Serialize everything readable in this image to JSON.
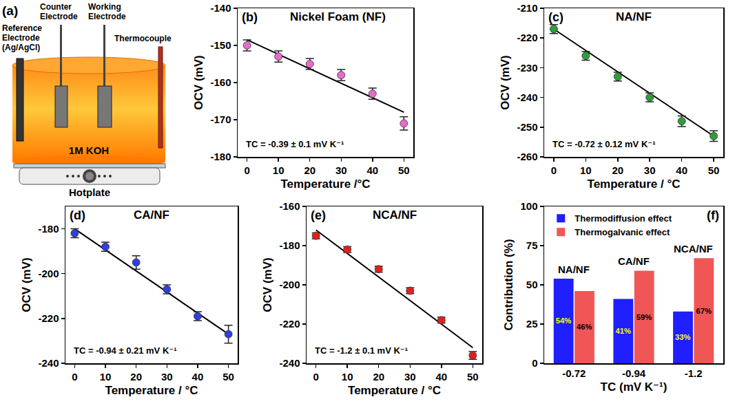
{
  "diagram": {
    "panel": "(a)",
    "reference": "Reference Electrode (Ag/AgCl)",
    "counter": "Counter Electrode",
    "working": "Working Electrode",
    "thermocouple": "Thermocouple",
    "solution": "1M KOH",
    "heater": "Hotplate"
  },
  "chart_data": [
    {
      "type": "scatter",
      "panel": "(b)",
      "title": "Nickel Foam (NF)",
      "x_label": "Temperature /°C",
      "y_label": "OCV (mV)",
      "x": [
        0,
        10,
        20,
        30,
        40,
        50
      ],
      "values": [
        -150,
        -153,
        -155,
        -158,
        -163,
        -171
      ],
      "errors": [
        1.5,
        1.5,
        1.5,
        1.5,
        1.5,
        1.8
      ],
      "color": "#e76bc9",
      "marker": "circle",
      "fit": {
        "x": [
          0,
          50
        ],
        "values": [
          -148.5,
          -168
        ],
        "color": "#000000",
        "line_style": "solid"
      },
      "annotation": "TC = -0.39 ± 0.1 mV K⁻¹",
      "xlim": [
        -3,
        53
      ],
      "xticks": [
        0,
        10,
        20,
        30,
        40,
        50
      ],
      "ylim": [
        -180,
        -140
      ],
      "yticks": [
        -180,
        -170,
        -160,
        -150,
        -140
      ],
      "grid": false
    },
    {
      "type": "scatter",
      "panel": "(c)",
      "title": "NA/NF",
      "x_label": "Temperature / °C",
      "y_label": "OCV (mV)",
      "x": [
        0,
        10,
        20,
        30,
        40,
        50
      ],
      "values": [
        -217,
        -226,
        -233,
        -240,
        -248,
        -253
      ],
      "errors": [
        1.5,
        1.5,
        1.5,
        1.5,
        1.8,
        1.8
      ],
      "color": "#2e9e3a",
      "marker": "circle",
      "fit": {
        "x": [
          0,
          50
        ],
        "values": [
          -217,
          -253
        ],
        "color": "#000000",
        "line_style": "solid"
      },
      "annotation": "TC = -0.72 ± 0.12 mV K⁻¹",
      "xlim": [
        -3,
        53
      ],
      "xticks": [
        0,
        10,
        20,
        30,
        40,
        50
      ],
      "ylim": [
        -260,
        -210
      ],
      "yticks": [
        -260,
        -250,
        -240,
        -230,
        -220,
        -210
      ],
      "grid": false
    },
    {
      "type": "scatter",
      "panel": "(d)",
      "title": "CA/NF",
      "x_label": "Temperature / °C",
      "y_label": "OCV (mV)",
      "x": [
        0,
        10,
        20,
        30,
        40,
        50
      ],
      "values": [
        -182,
        -188,
        -195,
        -207,
        -219,
        -227
      ],
      "errors": [
        2,
        2,
        3,
        2,
        2,
        4
      ],
      "color": "#2f3fe0",
      "marker": "circle",
      "fit": {
        "x": [
          0,
          50
        ],
        "values": [
          -180,
          -227
        ],
        "color": "#000000",
        "line_style": "solid"
      },
      "annotation": "TC = -0.94 ± 0.21 mV K⁻¹",
      "xlim": [
        -3,
        53
      ],
      "xticks": [
        0,
        10,
        20,
        30,
        40,
        50
      ],
      "ylim": [
        -240,
        -170
      ],
      "yticks": [
        -240,
        -220,
        -200,
        -180
      ],
      "grid": false
    },
    {
      "type": "scatter",
      "panel": "(e)",
      "title": "NCA/NF",
      "x_label": "Temperature / °C",
      "y_label": "OCV (mV)",
      "x": [
        0,
        10,
        20,
        30,
        40,
        50
      ],
      "values": [
        -175,
        -182,
        -192,
        -203,
        -218,
        -236
      ],
      "errors": [
        1.5,
        1.5,
        1.5,
        1.5,
        1.5,
        2
      ],
      "color": "#e0201e",
      "marker": "circle",
      "fit": {
        "x": [
          0,
          50
        ],
        "values": [
          -172,
          -232
        ],
        "color": "#000000",
        "line_style": "solid"
      },
      "annotation": "TC = -1.2 ± 0.1 mV K⁻¹",
      "xlim": [
        -3,
        53
      ],
      "xticks": [
        0,
        10,
        20,
        30,
        40,
        50
      ],
      "ylim": [
        -240,
        -160
      ],
      "yticks": [
        -240,
        -220,
        -200,
        -180,
        -160
      ],
      "grid": false
    },
    {
      "type": "bar",
      "panel": "(f)",
      "x_label": "TC (mV K⁻¹)",
      "y_label": "Contribution (%)",
      "categories": [
        "-0.72",
        "-0.94",
        "-1.2"
      ],
      "group_labels": [
        "NA/NF",
        "CA/NF",
        "NCA/NF"
      ],
      "series": [
        {
          "name": "Thermodiffusion effect",
          "color": "#1f1fff",
          "values": [
            54,
            41,
            33
          ],
          "value_labels": [
            "54%",
            "41%",
            "33%"
          ]
        },
        {
          "name": "Thermogalvanic effect",
          "color": "#f05656",
          "values": [
            46,
            59,
            67
          ],
          "value_labels": [
            "46%",
            "59%",
            "67%"
          ]
        }
      ],
      "data_labels": true,
      "legend": "upper left",
      "ylim": [
        0,
        100
      ],
      "yticks": [
        0,
        25,
        50,
        75,
        100
      ],
      "grid": false
    }
  ]
}
